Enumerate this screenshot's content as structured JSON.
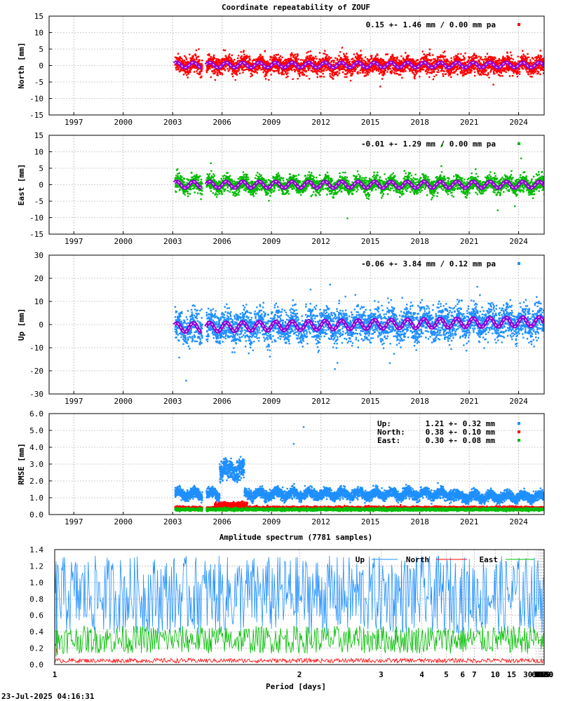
{
  "title": "Coordinate repeatability of ZOUF",
  "timestamp": "23-Jul-2025 04:16:31",
  "colors": {
    "north": "#ff0000",
    "east": "#00bb00",
    "up": "#1e8fff",
    "model": "#9400d3",
    "grid": "#a0a0a0"
  },
  "chart_data": [
    {
      "type": "scatter",
      "name": "north",
      "ylabel": "North [mm]",
      "ylim": [
        -15,
        15
      ],
      "yticks": [
        -15,
        -10,
        -5,
        0,
        5,
        10,
        15
      ],
      "xlim": [
        1995.5,
        2025.55
      ],
      "xticks": [
        1997,
        2000,
        2003,
        2006,
        2009,
        2012,
        2015,
        2018,
        2021,
        2024
      ],
      "legend": "0.15 +- 1.46 mm /  0.00 mm pa",
      "series": [
        {
          "name": "North",
          "color": "#ff0000",
          "start": 2003.1,
          "end": 2025.55,
          "mean": 0.15,
          "std": 1.46,
          "trend_mm_pa": 0.0,
          "seasonal_amp": 0.8,
          "gaps": [
            [
              2004.75,
              2005.0
            ]
          ]
        }
      ]
    },
    {
      "type": "scatter",
      "name": "east",
      "ylabel": "East [mm]",
      "ylim": [
        -15,
        15
      ],
      "yticks": [
        -15,
        -10,
        -5,
        0,
        5,
        10,
        15
      ],
      "xlim": [
        1995.5,
        2025.55
      ],
      "xticks": [
        1997,
        2000,
        2003,
        2006,
        2009,
        2012,
        2015,
        2018,
        2021,
        2024
      ],
      "legend": "-0.01 +- 1.29 mm /  0.00 mm pa",
      "series": [
        {
          "name": "East",
          "color": "#00bb00",
          "start": 2003.1,
          "end": 2025.55,
          "mean": -0.01,
          "std": 1.29,
          "trend_mm_pa": 0.0,
          "seasonal_amp": 1.0,
          "gaps": [
            [
              2004.75,
              2005.0
            ]
          ]
        }
      ]
    },
    {
      "type": "scatter",
      "name": "up",
      "ylabel": "Up [mm]",
      "ylim": [
        -30,
        30
      ],
      "yticks": [
        -30,
        -20,
        -10,
        0,
        10,
        20,
        30
      ],
      "xlim": [
        1995.5,
        2025.55
      ],
      "xticks": [
        1997,
        2000,
        2003,
        2006,
        2009,
        2012,
        2015,
        2018,
        2021,
        2024
      ],
      "legend": "-0.06 +- 3.84 mm /  0.12 mm pa",
      "series": [
        {
          "name": "Up",
          "color": "#1e8fff",
          "start": 2003.1,
          "end": 2025.55,
          "mean": -0.06,
          "std": 3.84,
          "trend_mm_pa": 0.12,
          "seasonal_amp": 2.0,
          "gaps": [
            [
              2004.75,
              2005.0
            ]
          ]
        }
      ]
    },
    {
      "type": "scatter",
      "name": "rmse",
      "ylabel": "RMSE [mm]",
      "ylim": [
        0,
        6
      ],
      "yticks": [
        0.0,
        1.0,
        2.0,
        3.0,
        4.0,
        5.0,
        6.0
      ],
      "xlim": [
        1995.5,
        2025.55
      ],
      "xticks": [
        1997,
        2000,
        2003,
        2006,
        2009,
        2012,
        2015,
        2018,
        2021,
        2024
      ],
      "legend_rows": [
        {
          "label": "Up:",
          "value": "1.21 +- 0.32 mm",
          "color": "#1e8fff"
        },
        {
          "label": "North:",
          "value": "0.38 +- 0.10 mm",
          "color": "#ff0000"
        },
        {
          "label": "East:",
          "value": "0.30 +- 0.08 mm",
          "color": "#00bb00"
        }
      ],
      "series": [
        {
          "name": "Up",
          "color": "#1e8fff",
          "mean": 1.21,
          "std": 0.32
        },
        {
          "name": "North",
          "color": "#ff0000",
          "mean": 0.38,
          "std": 0.1
        },
        {
          "name": "East",
          "color": "#00bb00",
          "mean": 0.3,
          "std": 0.08
        }
      ]
    },
    {
      "type": "line",
      "name": "spectrum",
      "title": "Amplitude spectrum (7781 samples)",
      "xlabel": "Period [days]",
      "xscale": "reciprocal",
      "xlim_days": [
        1,
        8760
      ],
      "xticks": [
        1,
        2,
        3,
        4,
        5,
        6,
        7,
        10,
        15,
        30,
        61,
        91,
        122,
        183,
        365,
        730,
        2190,
        4380,
        8760
      ],
      "ylim": [
        0,
        1.4
      ],
      "yticks": [
        0.0,
        0.2,
        0.4,
        0.6,
        0.8,
        1.0,
        1.2,
        1.4
      ],
      "legend": [
        "Up",
        "North",
        "East"
      ],
      "series": [
        {
          "name": "Up",
          "color": "#1e8fff",
          "peaks": [
            [
              8760,
              1.06
            ],
            [
              4380,
              1.05
            ],
            [
              3000,
              1.0
            ],
            [
              2190,
              1.13
            ],
            [
              1460,
              0.37
            ],
            [
              1095,
              0.37
            ],
            [
              876,
              0.6
            ],
            [
              730,
              0.4
            ],
            [
              547,
              0.55
            ],
            [
              438,
              0.6
            ],
            [
              365,
              0.82
            ],
            [
              300,
              0.5
            ],
            [
              250,
              0.55
            ],
            [
              183,
              0.45
            ],
            [
              150,
              0.3
            ],
            [
              122,
              0.38
            ],
            [
              91,
              0.35
            ],
            [
              61,
              0.3
            ],
            [
              30,
              0.2
            ],
            [
              15,
              0.15
            ],
            [
              7,
              0.12
            ],
            [
              4,
              0.11
            ],
            [
              2,
              0.12
            ],
            [
              1.05,
              0.15
            ],
            [
              1.0,
              1.14
            ]
          ]
        },
        {
          "name": "North",
          "color": "#ff0000",
          "peaks": [
            [
              8760,
              0.06
            ],
            [
              4380,
              0.16
            ],
            [
              2920,
              0.2
            ],
            [
              2190,
              0.45
            ],
            [
              1752,
              0.2
            ],
            [
              1460,
              0.12
            ],
            [
              1095,
              0.18
            ],
            [
              730,
              0.1
            ],
            [
              547,
              0.13
            ],
            [
              438,
              0.2
            ],
            [
              365,
              0.42
            ],
            [
              300,
              0.2
            ],
            [
              183,
              0.35
            ],
            [
              122,
              0.15
            ],
            [
              30,
              0.06
            ],
            [
              2,
              0.03
            ],
            [
              1.0,
              0.21
            ]
          ]
        },
        {
          "name": "East",
          "color": "#00bb00",
          "peaks": [
            [
              8760,
              0.38
            ],
            [
              4380,
              0.3
            ],
            [
              2920,
              0.25
            ],
            [
              2190,
              0.13
            ],
            [
              1460,
              0.12
            ],
            [
              1095,
              0.15
            ],
            [
              730,
              0.12
            ],
            [
              547,
              0.12
            ],
            [
              438,
              0.2
            ],
            [
              365,
              0.48
            ],
            [
              300,
              0.25
            ],
            [
              183,
              0.42
            ],
            [
              122,
              0.12
            ],
            [
              30,
              0.06
            ],
            [
              2,
              0.03
            ],
            [
              1.0,
              0.42
            ]
          ]
        }
      ]
    }
  ]
}
